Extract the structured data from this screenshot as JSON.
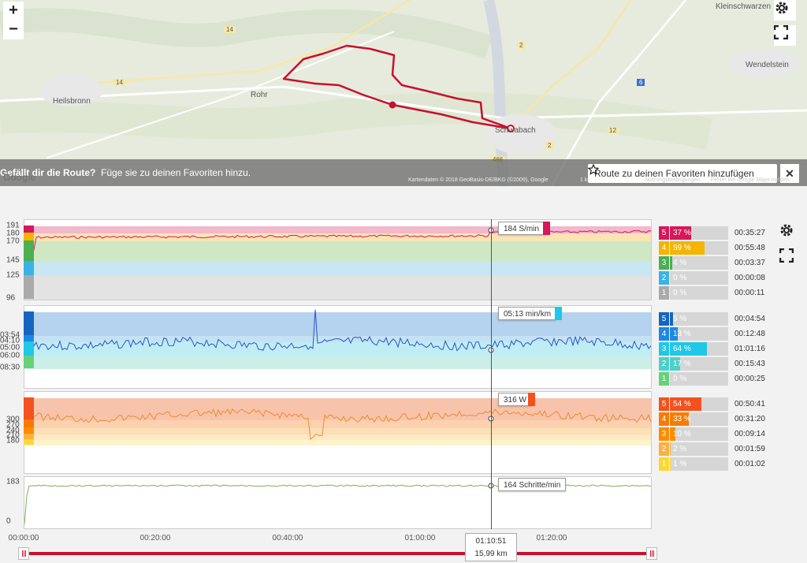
{
  "map": {
    "zoom_in": "+",
    "zoom_out": "−",
    "labels": {
      "kleinschwarz": "Kleinschwarzen",
      "wendelstein": "Wendelstein",
      "heilsbronn": "Heilsbronn",
      "rohr": "Rohr",
      "schwabach": "Schwabach",
      "road14a": "14",
      "road14b": "14",
      "road2a": "2",
      "road2b": "2",
      "road12": "12",
      "road6": "6",
      "road466": "466",
      "google": "Google"
    },
    "route_question": "Gefällt dir die Route?",
    "route_hint": "Füge sie zu deinen Favoriten hinzu.",
    "fav_button": "Route zu deinen Favoriten hinzufügen",
    "close": "✕",
    "credit": "Kartendaten © 2018 GeoBasis-DE/BKG (©2009), Google",
    "scale": "1 km",
    "terms": "Nutzungsbedingungen",
    "report": "Fehler bei Google Maps melden"
  },
  "panels": {
    "cadence": {
      "yticks": [
        "191",
        "180",
        "170",
        "145",
        "125",
        "96"
      ],
      "tooltip": "184 S/min",
      "color": "#d6175a"
    },
    "pace": {
      "yticks": [
        "03:54",
        "04:10",
        "05:00",
        "06:00",
        "08:30"
      ],
      "tooltip": "05:13 min/km",
      "color": "#2a53c9"
    },
    "power": {
      "yticks": [
        "300",
        "270",
        "240",
        "210",
        "180"
      ],
      "tooltip": "316 W",
      "color": "#f08a30"
    },
    "steps": {
      "yticks": [
        "183",
        "0"
      ],
      "tooltip": "164 Schritte/min",
      "color": "#7fae5a"
    }
  },
  "zones": {
    "cadence": [
      {
        "n": "5",
        "pct": "37 %",
        "time": "00:35:27",
        "color": "#d6175a",
        "fill": 0.37
      },
      {
        "n": "4",
        "pct": "59 %",
        "time": "00:55:48",
        "color": "#f4b400",
        "fill": 0.59
      },
      {
        "n": "3",
        "pct": "4 %",
        "time": "00:03:37",
        "color": "#4caf50",
        "fill": 0.04
      },
      {
        "n": "2",
        "pct": "0 %",
        "time": "00:00:08",
        "color": "#3bb2e6",
        "fill": 0.0
      },
      {
        "n": "1",
        "pct": "0 %",
        "time": "00:00:11",
        "color": "#aaaaaa",
        "fill": 0.0
      }
    ],
    "pace": [
      {
        "n": "5",
        "pct": "5 %",
        "time": "00:04:54",
        "color": "#1565c0",
        "fill": 0.05
      },
      {
        "n": "4",
        "pct": "13 %",
        "time": "00:12:48",
        "color": "#1e88e5",
        "fill": 0.13
      },
      {
        "n": "3",
        "pct": "64 %",
        "time": "01:01:16",
        "color": "#1ec8e6",
        "fill": 0.64
      },
      {
        "n": "2",
        "pct": "17 %",
        "time": "00:15:43",
        "color": "#4dd0c8",
        "fill": 0.17
      },
      {
        "n": "1",
        "pct": "0 %",
        "time": "00:00:25",
        "color": "#66d17a",
        "fill": 0.0
      }
    ],
    "power": [
      {
        "n": "5",
        "pct": "54 %",
        "time": "00:50:41",
        "color": "#f4511e",
        "fill": 0.54
      },
      {
        "n": "4",
        "pct": "33 %",
        "time": "00:31:20",
        "color": "#f57c00",
        "fill": 0.33
      },
      {
        "n": "3",
        "pct": "10 %",
        "time": "00:09:14",
        "color": "#fb8c00",
        "fill": 0.1
      },
      {
        "n": "2",
        "pct": "2 %",
        "time": "00:01:59",
        "color": "#fbb040",
        "fill": 0.02
      },
      {
        "n": "1",
        "pct": "1 %",
        "time": "00:01:02",
        "color": "#fdd835",
        "fill": 0.01
      }
    ]
  },
  "xaxis": [
    "00:00:00",
    "00:20:00",
    "00:40:00",
    "01:00:00",
    "01:20:00"
  ],
  "cursor": {
    "time": "01:10:51",
    "distance": "15,99 km"
  }
}
